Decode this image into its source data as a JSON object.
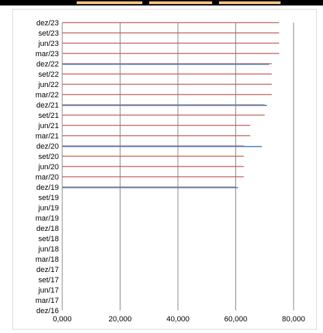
{
  "colors": {
    "red_series": "#c0504d",
    "blue_series": "#4f81bd",
    "grid": "#808080",
    "top_bar": "#000000",
    "top_bar_accent": "#f5c27a"
  },
  "chart_data": {
    "type": "bar",
    "orientation": "horizontal",
    "title": "",
    "xlabel": "",
    "ylabel": "",
    "xlim": [
      0,
      80000
    ],
    "x_ticks": [
      "0,000",
      "20,000",
      "40,000",
      "60,000",
      "80,000"
    ],
    "categories": [
      "dez/16",
      "mar/17",
      "jun/17",
      "set/17",
      "dez/17",
      "mar/18",
      "jun/18",
      "set/18",
      "dez/18",
      "mar/19",
      "jun/19",
      "set/19",
      "dez/19",
      "mar/20",
      "jun/20",
      "set/20",
      "dez/20",
      "mar/21",
      "jun/21",
      "set/21",
      "dez/21",
      "mar/22",
      "jun/22",
      "set/22",
      "dez/22",
      "mar/23",
      "jun/23",
      "set/23",
      "dez/23"
    ],
    "series": [
      {
        "color": "#c0504d",
        "values": [
          null,
          null,
          null,
          null,
          null,
          null,
          null,
          null,
          null,
          null,
          null,
          null,
          60000,
          62800,
          62800,
          62800,
          62800,
          65000,
          65000,
          70000,
          70000,
          72500,
          72500,
          72500,
          72500,
          75000,
          75000,
          75000,
          75000
        ]
      },
      {
        "color": "#4f81bd",
        "values": [
          null,
          null,
          null,
          null,
          null,
          null,
          null,
          null,
          null,
          null,
          null,
          null,
          60800,
          null,
          null,
          null,
          69000,
          null,
          null,
          null,
          70800,
          null,
          null,
          null,
          71500,
          null,
          null,
          null,
          null
        ]
      }
    ],
    "grid": true,
    "legend": "none"
  }
}
